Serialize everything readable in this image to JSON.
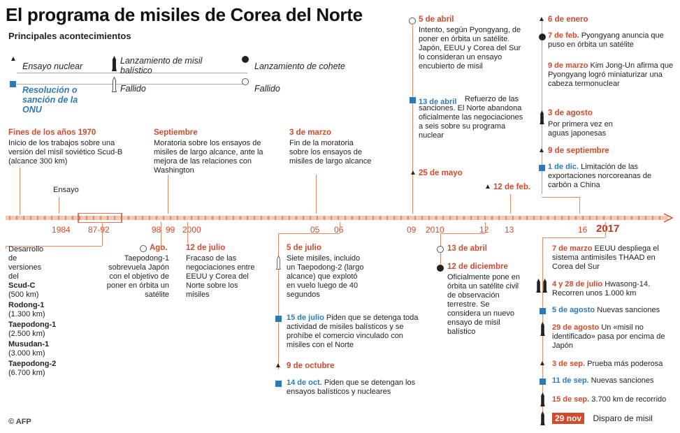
{
  "title": "El programa de misiles de Corea del Norte",
  "subtitle": "Principales acontecimientos",
  "legend": {
    "nuclear": "Ensayo nuclear",
    "ballistic": "Lanzamiento de misil balístico",
    "rocket": "Lanzamiento de cohete",
    "un": "Resolución o sanción de la ONU",
    "failed_missile": "Fallido",
    "failed_rocket": "Fallido"
  },
  "colors": {
    "accent": "#d14a2a",
    "blue": "#2a7ab8",
    "axis": "#e58a6a"
  },
  "axis": {
    "year_labels": [
      "1984",
      "87-92",
      "98",
      "99",
      "2000",
      "05",
      "06",
      "09",
      "2010",
      "12",
      "13",
      "16",
      "2017"
    ],
    "ensayo_label": "Ensayo"
  },
  "top": {
    "e1970": {
      "date": "Fines de los años 1970",
      "text": "Inicio de los trabajos sobre una versión del misil soviético Scud-B (alcance 300 km)"
    },
    "e_sept": {
      "date": "Septiembre",
      "text": "Moratoria sobre los ensayos de misiles de largo alcance, ante la mejora de las relaciones con Washington"
    },
    "e_marzo": {
      "date": "3 de marzo",
      "text": "Fin de la moratoria sobre los ensayos de misiles de largo alcance"
    },
    "e_5abril": {
      "date": "5 de abril",
      "text": "Intento, según Pyongyang, de poner en órbita un satélite. Japón, EEUU y Corea del Sur lo consideran un ensayo encubierto de misil"
    },
    "e_13abril": {
      "date": "13 de abril",
      "text": "Refuerzo de las sanciones. El Norte abandona oficialmente las negociaciones a seis sobre su programa nuclear"
    },
    "e_25mayo": {
      "date": "25 de mayo"
    },
    "e_12feb": {
      "date": "12 de feb."
    },
    "r2016": [
      {
        "date": "6 de enero",
        "text": ""
      },
      {
        "date": "7 de feb.",
        "text": "Pyongyang anuncia que puso en órbita un satélite"
      },
      {
        "date": "9 de marzo",
        "text": "Kim Jong-Un afirma que Pyongyang logró miniaturizar una cabeza termonuclear"
      },
      {
        "date": "3 de agosto",
        "text": "Por primera vez en aguas japonesas"
      },
      {
        "date": "9 de septiembre",
        "text": ""
      },
      {
        "date": "1 de dic.",
        "text": "Limitación de las exportaciones norcoreanas de carbón a China"
      }
    ]
  },
  "bottom": {
    "desarrollo": "Desarrollo de versiones del",
    "scudc": "Scud-C",
    "scudc_r": "(500 km)",
    "rodong": "Rodong-1",
    "rodong_r": "(1.300 km)",
    "taepo1": "Taepodong-1",
    "taepo1_r": "(2.500 km)",
    "musudan": "Musudan-1",
    "musudan_r": "(3.000 km)",
    "taepo2": "Taepodong-2",
    "taepo2_r": "(6.700 km)",
    "ago": {
      "date": "Ago.",
      "text": "Taepodong-1 sobrevuela Japón con el objetivo de poner en órbita un satélite"
    },
    "jul2000": {
      "date": "12 de julio",
      "text": "Fracaso de las negociaciones entre EEUU y Corea del Norte sobre los misiles"
    },
    "jul2006": {
      "date": "5 de julio",
      "text": "Siete misiles, incluido un Taepodong-2 (largo alcance) que explotó en vuelo luego de 40 segundos"
    },
    "jul15": {
      "date": "15 de julio",
      "text": "Piden que se detenga toda actividad de misiles balísticos y se prohíbe el comercio vinculado con misiles con el Norte"
    },
    "oct9": {
      "date": "9 de octubre"
    },
    "oct14": {
      "date": "14 de oct.",
      "text": "Piden que se detengan los ensayos balísticos y nucleares"
    },
    "abr13_2012": {
      "date": "13 de abril"
    },
    "dic12": {
      "date": "12 de diciembre",
      "text": "Oficialmente pone en órbita un satélite civil de observación terrestre. Se considera un nuevo ensayo de misil balístico"
    },
    "r2017": [
      {
        "date": "7 de marzo",
        "text": "EEUU despliega el sistema antimisiles THAAD en Corea del Sur"
      },
      {
        "date": "4 y 28 de julio",
        "text": "Hwasong-14. Recorren unos 1.000 km"
      },
      {
        "date": "5 de agosto",
        "text": "Nuevas sanciones"
      },
      {
        "date": "29 de agosto",
        "text": "Un «misil no identificado» pasa por encima de Japón"
      },
      {
        "date": "3 de sep.",
        "text": "Prueba más poderosa"
      },
      {
        "date": "11 de sep.",
        "text": "Nuevas sanciones"
      },
      {
        "date": "15 de sep.",
        "text": "3.700 km de recorrido"
      },
      {
        "date": "29 nov",
        "text": "Disparo de misil"
      }
    ]
  },
  "credit": "© AFP"
}
